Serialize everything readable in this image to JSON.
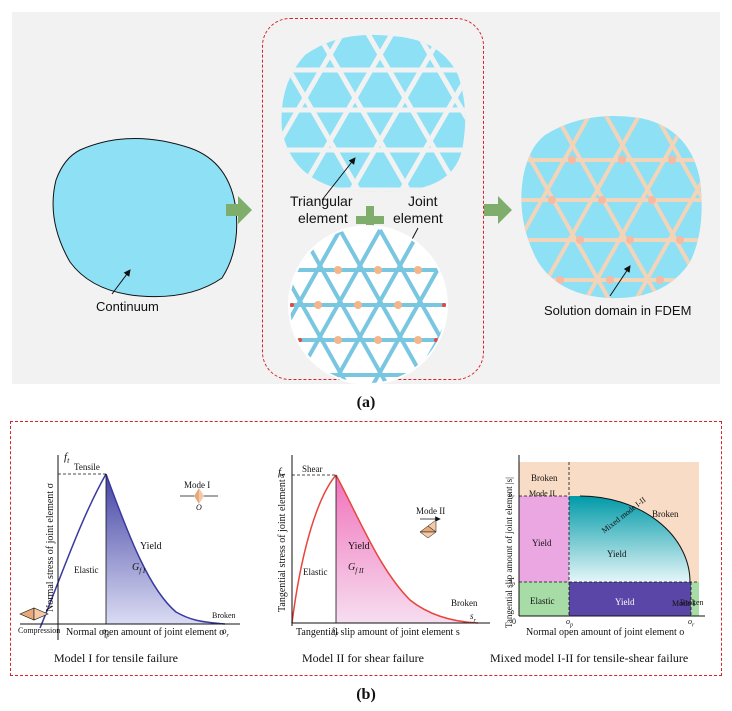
{
  "panel_a": {
    "caption": "(a)",
    "continuum_label": "Continuum",
    "triangular_label_line1": "Triangular",
    "triangular_label_line2": "element",
    "joint_label_line1": "Joint",
    "joint_label_line2": "element",
    "solution_label": "Solution domain in FDEM",
    "fill_color": "#8ee0f5",
    "arrow_color": "#7fae6c"
  },
  "panel_b": {
    "caption": "(b)",
    "model1": {
      "title": "Model I for tensile failure",
      "ylabel": "Normal stress of joint element σ",
      "xlabel": "Normal open amount of joint element o",
      "peak_label": "f",
      "peak_sub": "t",
      "tensile": "Tensile",
      "compression": "Compression",
      "elastic": "Elastic",
      "yield": "Yield",
      "energy": "G",
      "energy_sub": "f I",
      "broken": "Broken",
      "mode": "Mode I",
      "mode_o": "O",
      "op": "o",
      "op_sub": "p",
      "or": "o",
      "or_sub": "r"
    },
    "model2": {
      "title": "Model II for shear failure",
      "ylabel": "Tangential stress of joint element τ",
      "xlabel": "Tangential slip amount of joint element s",
      "peak_label": "f",
      "peak_sub": "s",
      "shear": "Shear",
      "elastic": "Elastic",
      "yield": "Yield",
      "energy": "G",
      "energy_sub": "f II",
      "broken": "Broken",
      "mode": "Mode II",
      "mode_s": "s",
      "sp": "s",
      "sp_sub": "p",
      "sr": "s",
      "sr_sub": "r"
    },
    "model3": {
      "title": "Mixed model I-II for tensile-shear failure",
      "ylabel": "Tangential slip amount of joint element |s|",
      "xlabel": "Normal open amount of joint element o",
      "broken_tl": "Broken",
      "mode2": "Mode II",
      "mixed": "Mixed mode I-II",
      "broken_r": "Broken",
      "yield_l": "Yield",
      "yield_c": "Yield",
      "elastic": "Elastic",
      "yield_b": "Yield",
      "mode1": "Mode I",
      "broken_br": "Broken",
      "origin": "0",
      "op": "o",
      "op_sub": "p",
      "or": "o",
      "or_sub": "r",
      "sp": "s",
      "sp_sub": "p",
      "sr": "s",
      "sr_sub": "r"
    }
  }
}
